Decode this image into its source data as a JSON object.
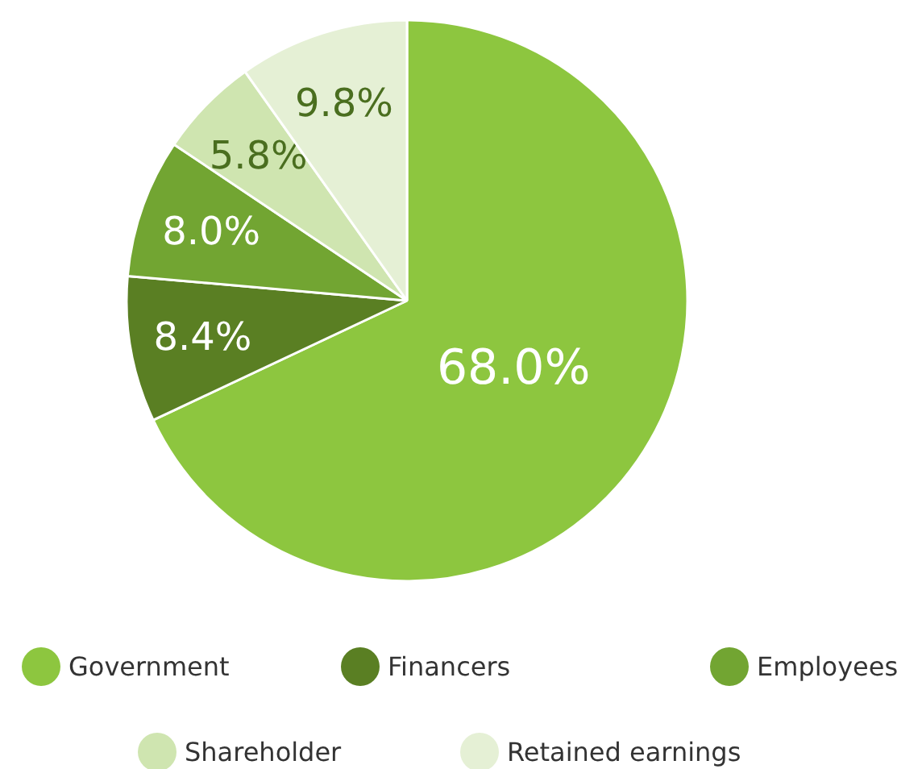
{
  "chart_data": {
    "type": "pie",
    "categories": [
      "Government",
      "Financers",
      "Employees",
      "Shareholder",
      "Retained earnings"
    ],
    "values": [
      68.0,
      8.4,
      8.0,
      5.8,
      9.8
    ],
    "colors": [
      "#8dc63f",
      "#5a7f23",
      "#72a532",
      "#cfe5b0",
      "#e5f0d5"
    ],
    "value_labels": [
      "68.0%",
      "8.4%",
      "8.0%",
      "5.8%",
      "9.8%"
    ],
    "legend": "bottom"
  }
}
